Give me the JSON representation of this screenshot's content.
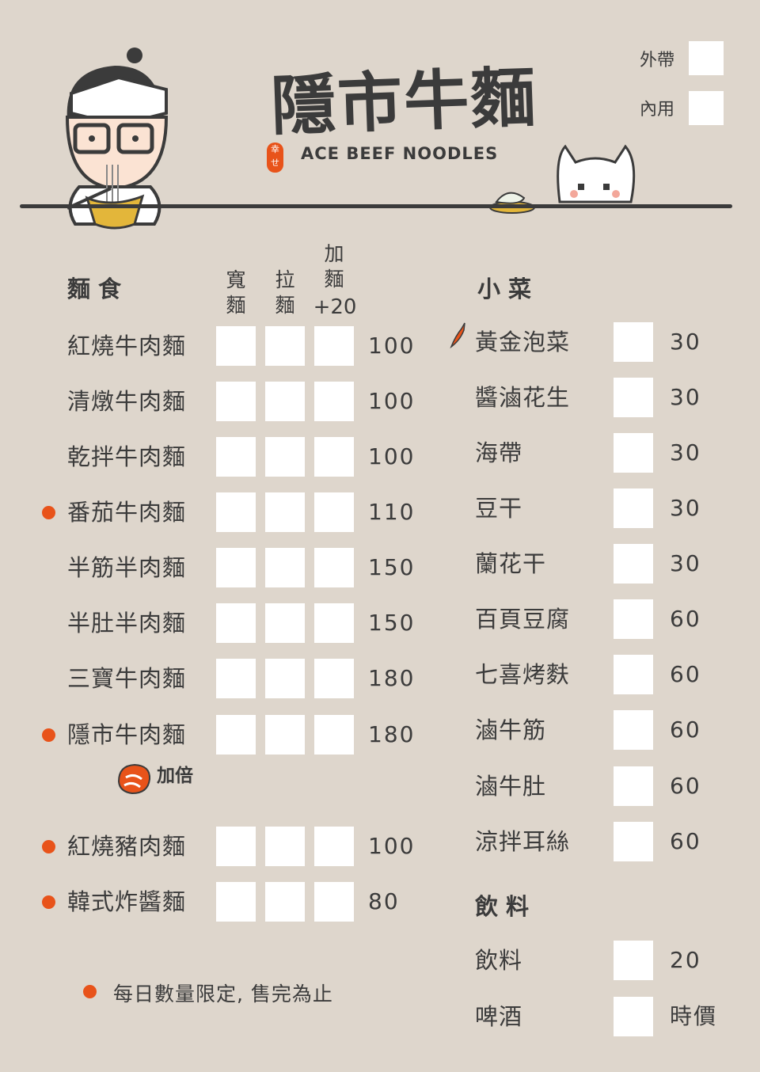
{
  "header": {
    "title": "隱市牛麵",
    "subtitle": "ACE BEEF NOODLES",
    "seal": "幸せ",
    "takeout": "外帶",
    "dine_in": "內用"
  },
  "noodles": {
    "heading": "麵食",
    "col_wide": "寬麵",
    "col_pulled": "拉麵",
    "col_extra": "加麵",
    "col_extra_price": "+20",
    "items": [
      {
        "name": "紅燒牛肉麵",
        "price": "100",
        "dot": false
      },
      {
        "name": "清燉牛肉麵",
        "price": "100",
        "dot": false
      },
      {
        "name": "乾拌牛肉麵",
        "price": "100",
        "dot": false
      },
      {
        "name": "番茄牛肉麵",
        "price": "110",
        "dot": true
      },
      {
        "name": "半筋半肉麵",
        "price": "150",
        "dot": false
      },
      {
        "name": "半肚半肉麵",
        "price": "150",
        "dot": false
      },
      {
        "name": "三寶牛肉麵",
        "price": "180",
        "dot": false
      },
      {
        "name": "隱市牛肉麵",
        "price": "180",
        "dot": true
      },
      {
        "name": "紅燒豬肉麵",
        "price": "100",
        "dot": true
      },
      {
        "name": "韓式炸醬麵",
        "price": "80",
        "dot": true
      }
    ],
    "double_meat": "加倍",
    "note": "每日數量限定, 售完為止"
  },
  "sides": {
    "heading": "小菜",
    "items": [
      {
        "name": "黃金泡菜",
        "price": "30",
        "spicy": true
      },
      {
        "name": "醬滷花生",
        "price": "30"
      },
      {
        "name": "海帶",
        "price": "30"
      },
      {
        "name": "豆干",
        "price": "30"
      },
      {
        "name": "蘭花干",
        "price": "30"
      },
      {
        "name": "百頁豆腐",
        "price": "60"
      },
      {
        "name": "七喜烤麩",
        "price": "60"
      },
      {
        "name": "滷牛筋",
        "price": "60"
      },
      {
        "name": "滷牛肚",
        "price": "60"
      },
      {
        "name": "涼拌耳絲",
        "price": "60"
      }
    ]
  },
  "drinks": {
    "heading": "飲料",
    "items": [
      {
        "name": "飲料",
        "price": "20"
      },
      {
        "name": "啤酒",
        "price": "時價"
      }
    ]
  },
  "colors": {
    "background": "#ded6cc",
    "text": "#3b3b3b",
    "accent": "#e8531a"
  }
}
